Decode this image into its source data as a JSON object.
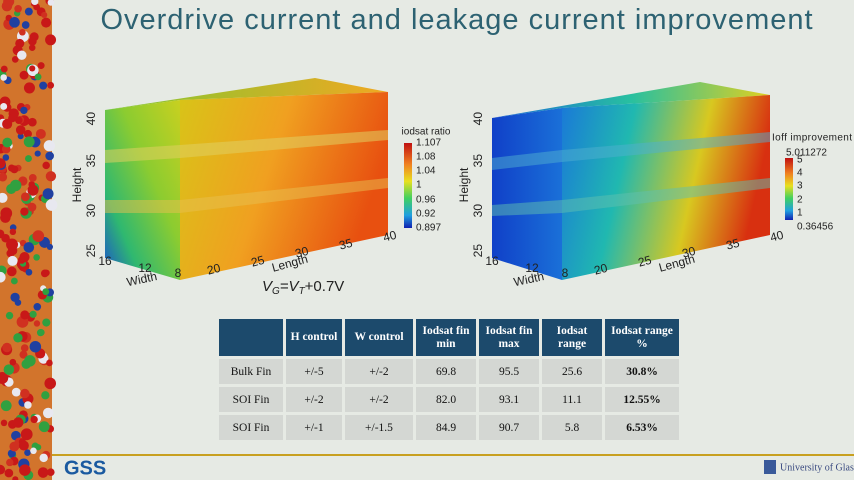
{
  "title": "Overdrive current and leakage current improvement",
  "plots": [
    {
      "height_label": "Height",
      "width_label": "Width",
      "length_label": "Length",
      "height_ticks": [
        "40",
        "35",
        "30",
        "25"
      ],
      "width_ticks": [
        "16",
        "12",
        "8"
      ],
      "length_ticks": [
        "20",
        "25",
        "30",
        "35",
        "40"
      ],
      "colorbar_title": "iodsat ratio",
      "colorbar_ticks": [
        "1.107",
        "1.08",
        "1.04",
        "1",
        "0.96",
        "0.92",
        "0.897"
      ]
    },
    {
      "height_label": "Height",
      "width_label": "Width",
      "length_label": "Length",
      "height_ticks": [
        "40",
        "35",
        "30",
        "25"
      ],
      "width_ticks": [
        "16",
        "12",
        "8"
      ],
      "length_ticks": [
        "20",
        "25",
        "30",
        "35",
        "40"
      ],
      "colorbar_title": "Ioff improvement",
      "colorbar_ticks": [
        "5.011272",
        "5",
        "4",
        "3",
        "2",
        "1",
        "0.36456"
      ]
    }
  ],
  "equation": {
    "v1": "V",
    "sub1": "G",
    "mid": "=V",
    "sub2": "T",
    "tail": "+0.7V"
  },
  "table": {
    "header": [
      "",
      "H control",
      "W control",
      "Iodsat fin min",
      "Iodsat fin max",
      "Iodsat range",
      "Iodsat range %"
    ],
    "rows": [
      [
        "Bulk Fin",
        "+/-5",
        "+/-2",
        "69.8",
        "95.5",
        "25.6",
        "30.8%"
      ],
      [
        "SOI Fin",
        "+/-2",
        "+/-2",
        "82.0",
        "93.1",
        "11.1",
        "12.55%"
      ],
      [
        "SOI Fin",
        "+/-1",
        "+/-1.5",
        "84.9",
        "90.7",
        "5.8",
        "6.53%"
      ]
    ]
  },
  "footer": {
    "logo": "GSS",
    "university": "University of Glasgow"
  }
}
